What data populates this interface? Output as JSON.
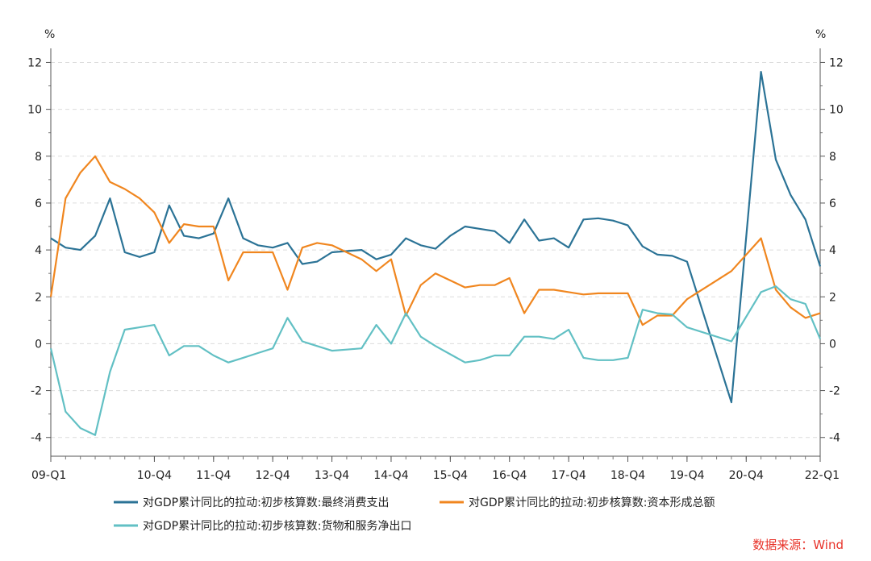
{
  "chart_data": {
    "type": "line",
    "title": "",
    "unit_left": "%",
    "unit_right": "%",
    "ylim": [
      -4.8,
      12.6
    ],
    "yticks": [
      12,
      10,
      8,
      6,
      4,
      2,
      0,
      -2,
      -4
    ],
    "x_tick_labels": [
      "09-Q1",
      "10-Q4",
      "11-Q4",
      "12-Q4",
      "13-Q4",
      "14-Q4",
      "15-Q4",
      "16-Q4",
      "17-Q4",
      "18-Q4",
      "19-Q4",
      "20-Q4",
      "22-Q1"
    ],
    "x_tick_index": [
      0,
      7,
      11,
      15,
      19,
      23,
      27,
      31,
      35,
      39,
      43,
      47,
      52
    ],
    "x": [
      "09-Q1",
      "09-Q2",
      "09-Q3",
      "09-Q4",
      "10-Q1",
      "10-Q2",
      "10-Q3",
      "10-Q4",
      "11-Q1",
      "11-Q2",
      "11-Q3",
      "11-Q4",
      "12-Q1",
      "12-Q2",
      "12-Q3",
      "12-Q4",
      "13-Q1",
      "13-Q2",
      "13-Q3",
      "13-Q4",
      "14-Q1",
      "14-Q2",
      "14-Q3",
      "14-Q4",
      "15-Q1",
      "15-Q2",
      "15-Q3",
      "15-Q4",
      "16-Q1",
      "16-Q2",
      "16-Q3",
      "16-Q4",
      "17-Q1",
      "17-Q2",
      "17-Q3",
      "17-Q4",
      "18-Q1",
      "18-Q2",
      "18-Q3",
      "18-Q4",
      "19-Q1",
      "19-Q2",
      "19-Q3",
      "19-Q4",
      "20-Q1",
      "20-Q2",
      "20-Q3",
      "20-Q4",
      "21-Q1",
      "21-Q2",
      "21-Q3",
      "21-Q4",
      "22-Q1"
    ],
    "series": [
      {
        "name": "对GDP累计同比的拉动:初步核算数:最终消费支出",
        "color": "#2b7396",
        "values": [
          4.5,
          4.1,
          4.0,
          4.6,
          6.2,
          3.9,
          3.7,
          3.9,
          5.9,
          4.6,
          4.5,
          4.7,
          6.2,
          4.5,
          4.2,
          4.1,
          4.3,
          3.4,
          3.5,
          3.9,
          3.95,
          4.0,
          3.6,
          3.8,
          4.5,
          4.2,
          4.05,
          4.6,
          5.0,
          4.9,
          4.8,
          4.3,
          5.3,
          4.4,
          4.5,
          4.1,
          5.3,
          5.35,
          5.25,
          5.05,
          4.15,
          3.8,
          3.75,
          3.5,
          null,
          null,
          -2.5,
          null,
          11.6,
          7.85,
          6.35,
          5.3,
          3.3
        ]
      },
      {
        "name": "对GDP累计同比的拉动:初步核算数:资本形成总额",
        "color": "#f0861f",
        "values": [
          2.0,
          6.2,
          7.3,
          8.0,
          6.9,
          6.6,
          6.2,
          5.6,
          4.3,
          5.1,
          5.0,
          5.0,
          2.7,
          3.9,
          3.9,
          3.9,
          2.3,
          4.1,
          4.3,
          4.2,
          3.9,
          3.6,
          3.1,
          3.6,
          1.2,
          2.5,
          3.0,
          2.7,
          2.4,
          2.5,
          2.5,
          2.8,
          1.3,
          2.3,
          2.3,
          2.2,
          2.1,
          2.15,
          2.15,
          2.15,
          0.8,
          1.2,
          1.2,
          1.9,
          null,
          null,
          3.1,
          null,
          4.5,
          2.3,
          1.55,
          1.1,
          1.3
        ]
      },
      {
        "name": "对GDP累计同比的拉动:初步核算数:货物和服务净出口",
        "color": "#62c0c4",
        "values": [
          -0.2,
          -2.9,
          -3.6,
          -3.9,
          -1.2,
          0.6,
          0.7,
          0.8,
          -0.5,
          -0.1,
          -0.1,
          -0.5,
          -0.8,
          -0.6,
          -0.4,
          -0.2,
          1.1,
          0.1,
          -0.1,
          -0.3,
          -0.25,
          -0.2,
          0.8,
          0.0,
          1.3,
          0.3,
          -0.1,
          -0.45,
          -0.8,
          -0.7,
          -0.5,
          -0.5,
          0.3,
          0.3,
          0.2,
          0.6,
          -0.6,
          -0.7,
          -0.7,
          -0.6,
          1.45,
          1.3,
          1.25,
          0.7,
          null,
          null,
          0.1,
          null,
          2.2,
          2.45,
          1.9,
          1.7,
          0.2
        ]
      }
    ],
    "legend": "bottom",
    "grid": true,
    "source": "数据来源：Wind"
  }
}
